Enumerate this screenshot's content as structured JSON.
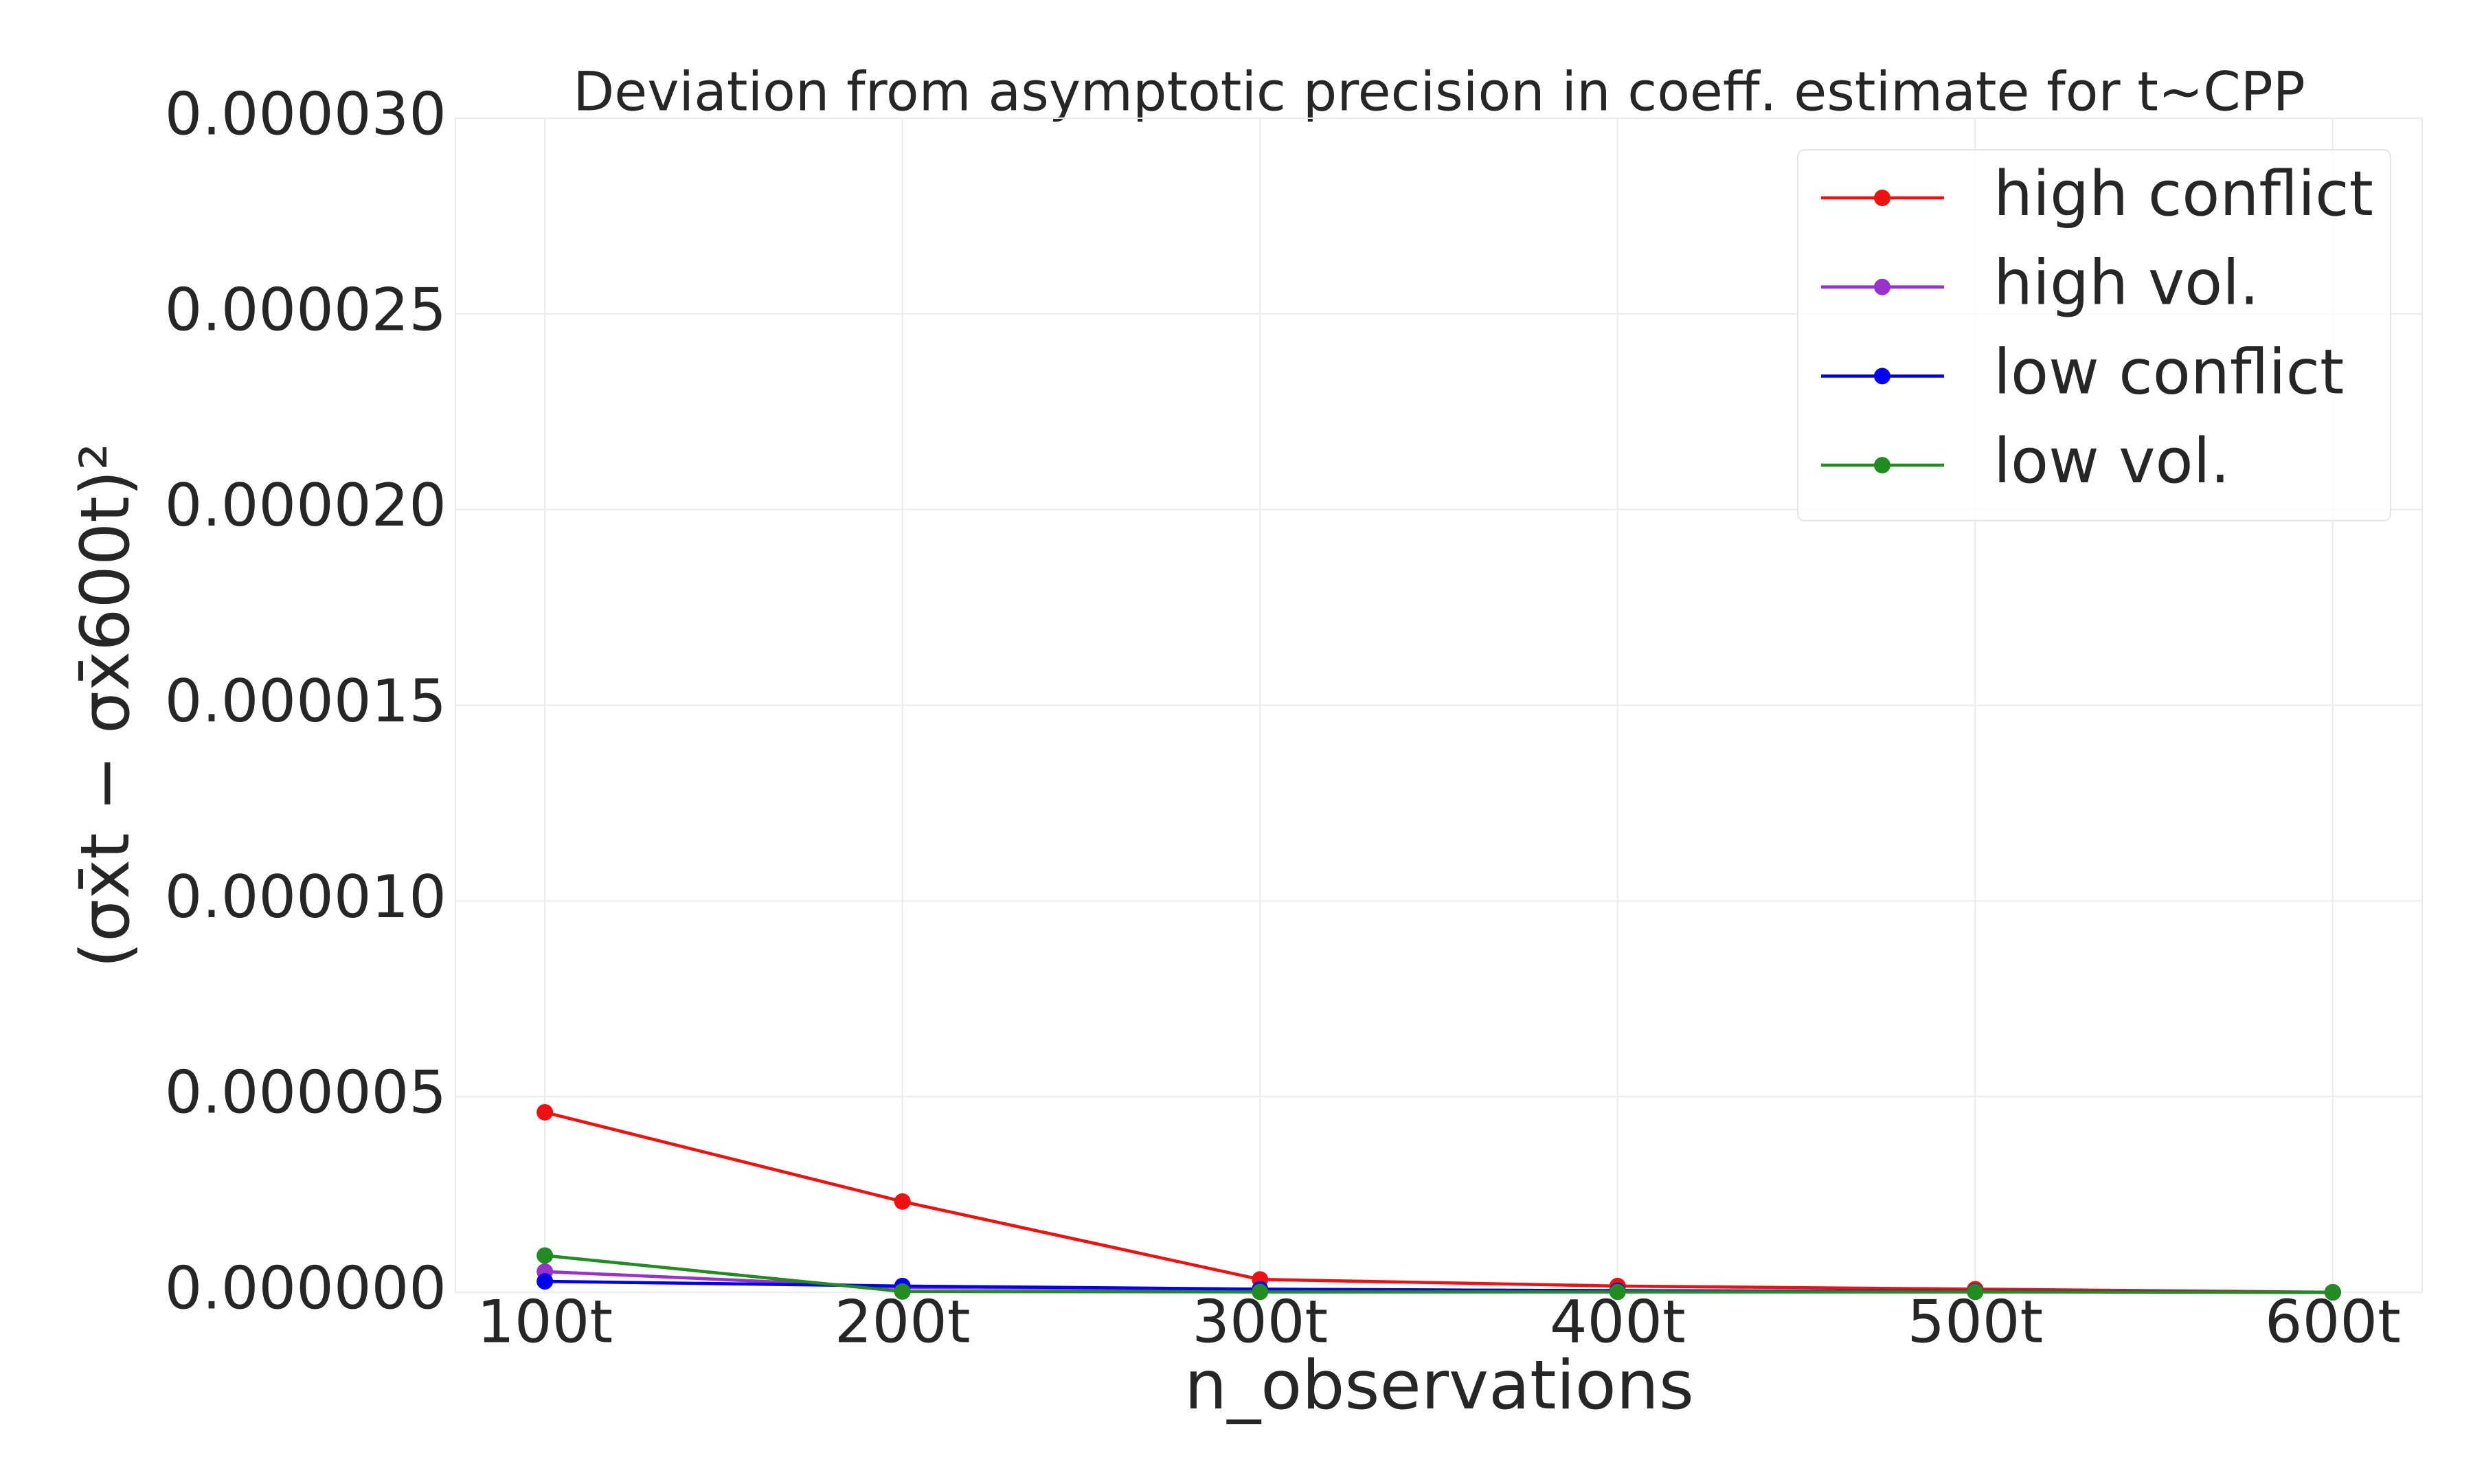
{
  "chart_data": {
    "type": "line",
    "title": "Deviation from asymptotic precision in coeff. estimate for t~CPP",
    "x_label": "n_observations",
    "y_label": "(σx̄t − σx̄600t)²",
    "categories": [
      "100t",
      "200t",
      "300t",
      "400t",
      "500t",
      "600t"
    ],
    "series": [
      {
        "name": "high conflict",
        "color": "#ee1111",
        "values": [
          4.6e-06,
          2.32e-06,
          3.3e-07,
          1.6e-07,
          8e-08,
          0
        ]
      },
      {
        "name": "high vol.",
        "color": "#9932cc",
        "values": [
          5.3e-07,
          1.2e-07,
          8e-08,
          4e-08,
          2e-08,
          0
        ]
      },
      {
        "name": "low conflict",
        "color": "#0000ee",
        "values": [
          2.8e-07,
          1.6e-07,
          8e-08,
          4e-08,
          2e-08,
          0
        ]
      },
      {
        "name": "low vol.",
        "color": "#228b22",
        "values": [
          9.4e-07,
          2e-08,
          1e-08,
          1e-08,
          1e-08,
          0
        ]
      }
    ],
    "ylim": [
      0,
      3e-05
    ],
    "yticks": [
      {
        "value": 0,
        "label": "0.000000"
      },
      {
        "value": 5e-06,
        "label": "0.000005"
      },
      {
        "value": 1e-05,
        "label": "0.000010"
      },
      {
        "value": 1.5e-05,
        "label": "0.000015"
      },
      {
        "value": 2e-05,
        "label": "0.000020"
      },
      {
        "value": 2.5e-05,
        "label": "0.000025"
      },
      {
        "value": 3e-05,
        "label": "0.000030"
      }
    ],
    "grid": true,
    "legend": "upper right"
  }
}
